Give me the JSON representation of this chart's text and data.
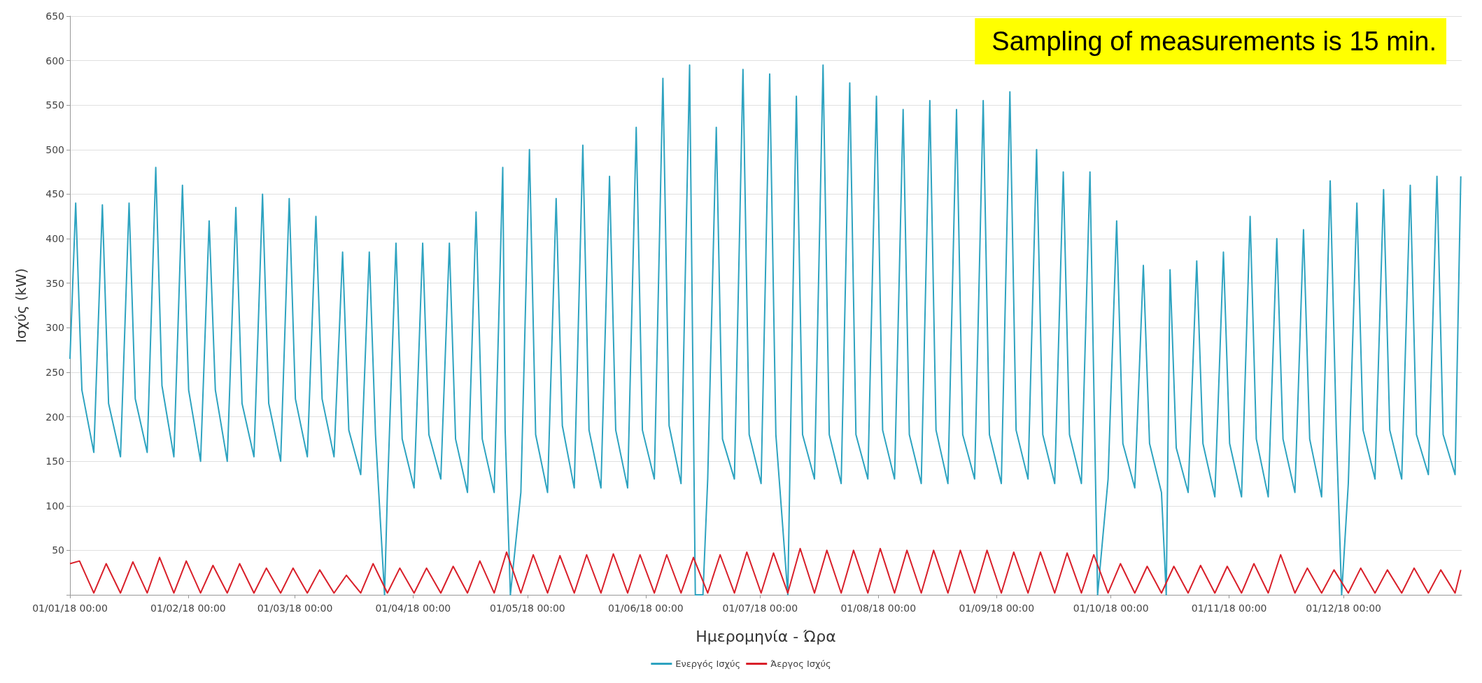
{
  "chart_data": {
    "type": "line",
    "xlabel": "Ημερομηνία - Ώρα",
    "ylabel": "Ισχύς (kW)",
    "annotations": [
      "Sampling of measurements is 15 min."
    ],
    "legend": "bottom",
    "grid": "y",
    "marker": "none",
    "line_style": "solid",
    "xlim": [
      "2018-01-01T00:00",
      "2018-12-31T23:45"
    ],
    "xticks": [
      {
        "value": "2018-01-01",
        "label": "01/01/18 00:00"
      },
      {
        "value": "2018-02-01",
        "label": "01/02/18 00:00"
      },
      {
        "value": "2018-03-01",
        "label": "01/03/18 00:00"
      },
      {
        "value": "2018-04-01",
        "label": "01/04/18 00:00"
      },
      {
        "value": "2018-05-01",
        "label": "01/05/18 00:00"
      },
      {
        "value": "2018-06-01",
        "label": "01/06/18 00:00"
      },
      {
        "value": "2018-07-01",
        "label": "01/07/18 00:00"
      },
      {
        "value": "2018-08-01",
        "label": "01/08/18 00:00"
      },
      {
        "value": "2018-09-01",
        "label": "01/09/18 00:00"
      },
      {
        "value": "2018-10-01",
        "label": "01/10/18 00:00"
      },
      {
        "value": "2018-11-01",
        "label": "01/11/18 00:00"
      },
      {
        "value": "2018-12-01",
        "label": "01/12/18 00:00"
      }
    ],
    "ylim": [
      0,
      650
    ],
    "yticks": [
      {
        "value": 0,
        "label": null
      },
      50,
      100,
      150,
      200,
      250,
      300,
      350,
      400,
      450,
      500,
      550,
      600,
      650
    ],
    "series": [
      {
        "name": "Ενεργός Ισχύς",
        "color": "#2ea3c0",
        "x": [
          "2018-01-01T00:00",
          "2018-01-02T12:00",
          "2018-01-04T03:00",
          "2018-01-07T06:00",
          "2018-01-09T12:00",
          "2018-01-11T03:00",
          "2018-01-14T06:00",
          "2018-01-16T12:00",
          "2018-01-18T03:00",
          "2018-01-21T06:00",
          "2018-01-23T12:00",
          "2018-01-25T03:00",
          "2018-01-28T06:00",
          "2018-01-30T12:00",
          "2018-02-01T03:00",
          "2018-02-04T06:00",
          "2018-02-06T12:00",
          "2018-02-08T03:00",
          "2018-02-11T06:00",
          "2018-02-13T12:00",
          "2018-02-15T03:00",
          "2018-02-18T06:00",
          "2018-02-20T12:00",
          "2018-02-22T03:00",
          "2018-02-25T06:00",
          "2018-02-27T12:00",
          "2018-03-01T03:00",
          "2018-03-04T06:00",
          "2018-03-06T12:00",
          "2018-03-08T03:00",
          "2018-03-11T06:00",
          "2018-03-13T12:00",
          "2018-03-15T03:00",
          "2018-03-18T06:00",
          "2018-03-20T12:00",
          "2018-03-22T03:00",
          "2018-03-24T12:00",
          "2018-03-25T06:00",
          "2018-03-27T12:00",
          "2018-03-29T03:00",
          "2018-04-01T06:00",
          "2018-04-03T12:00",
          "2018-04-05T03:00",
          "2018-04-08T06:00",
          "2018-04-10T12:00",
          "2018-04-12T03:00",
          "2018-04-15T06:00",
          "2018-04-17T12:00",
          "2018-04-19T03:00",
          "2018-04-22T06:00",
          "2018-04-24T12:00",
          "2018-04-25T03:00",
          "2018-04-26T12:00",
          "2018-04-29T06:00",
          "2018-05-01T12:00",
          "2018-05-03T03:00",
          "2018-05-06T06:00",
          "2018-05-08T12:00",
          "2018-05-10T03:00",
          "2018-05-13T06:00",
          "2018-05-15T12:00",
          "2018-05-17T03:00",
          "2018-05-20T06:00",
          "2018-05-22T12:00",
          "2018-05-24T03:00",
          "2018-05-27T06:00",
          "2018-05-29T12:00",
          "2018-05-31T03:00",
          "2018-06-03T06:00",
          "2018-06-05T12:00",
          "2018-06-07T03:00",
          "2018-06-10T06:00",
          "2018-06-12T12:00",
          "2018-06-14T00:00",
          "2018-06-16T00:00",
          "2018-06-17T06:00",
          "2018-06-19T12:00",
          "2018-06-21T03:00",
          "2018-06-24T06:00",
          "2018-06-26T12:00",
          "2018-06-28T03:00",
          "2018-07-01T06:00",
          "2018-07-03T12:00",
          "2018-07-05T03:00",
          "2018-07-08T06:00",
          "2018-07-10T12:00",
          "2018-07-12T03:00",
          "2018-07-15T06:00",
          "2018-07-17T12:00",
          "2018-07-19T03:00",
          "2018-07-22T06:00",
          "2018-07-24T12:00",
          "2018-07-26T03:00",
          "2018-07-29T06:00",
          "2018-07-31T12:00",
          "2018-08-02T03:00",
          "2018-08-05T06:00",
          "2018-08-07T12:00",
          "2018-08-09T03:00",
          "2018-08-12T06:00",
          "2018-08-14T12:00",
          "2018-08-16T03:00",
          "2018-08-19T06:00",
          "2018-08-21T12:00",
          "2018-08-23T03:00",
          "2018-08-26T06:00",
          "2018-08-28T12:00",
          "2018-08-30T03:00",
          "2018-09-02T06:00",
          "2018-09-04T12:00",
          "2018-09-06T03:00",
          "2018-09-09T06:00",
          "2018-09-11T12:00",
          "2018-09-13T03:00",
          "2018-09-16T06:00",
          "2018-09-18T12:00",
          "2018-09-20T03:00",
          "2018-09-23T06:00",
          "2018-09-25T12:00",
          "2018-09-27T12:00",
          "2018-09-30T06:00",
          "2018-10-02T12:00",
          "2018-10-04T03:00",
          "2018-10-07T06:00",
          "2018-10-09T12:00",
          "2018-10-11T03:00",
          "2018-10-14T06:00",
          "2018-10-15T12:00",
          "2018-10-16T12:00",
          "2018-10-18T03:00",
          "2018-10-21T06:00",
          "2018-10-23T12:00",
          "2018-10-25T03:00",
          "2018-10-28T06:00",
          "2018-10-30T12:00",
          "2018-11-01T03:00",
          "2018-11-04T06:00",
          "2018-11-06T12:00",
          "2018-11-08T03:00",
          "2018-11-11T06:00",
          "2018-11-13T12:00",
          "2018-11-15T03:00",
          "2018-11-18T06:00",
          "2018-11-20T12:00",
          "2018-11-22T03:00",
          "2018-11-25T06:00",
          "2018-11-27T12:00",
          "2018-11-29T03:00",
          "2018-11-30T12:00",
          "2018-12-02T06:00",
          "2018-12-04T12:00",
          "2018-12-06T03:00",
          "2018-12-09T06:00",
          "2018-12-11T12:00",
          "2018-12-13T03:00",
          "2018-12-16T06:00",
          "2018-12-18T12:00",
          "2018-12-20T03:00",
          "2018-12-23T06:00",
          "2018-12-25T12:00",
          "2018-12-27T03:00",
          "2018-12-30T06:00",
          "2018-12-31T18:00"
        ],
        "values": [
          265,
          440,
          230,
          160,
          438,
          215,
          155,
          440,
          220,
          160,
          480,
          235,
          155,
          460,
          230,
          150,
          420,
          230,
          150,
          435,
          215,
          155,
          450,
          215,
          150,
          445,
          220,
          155,
          425,
          220,
          155,
          385,
          185,
          135,
          385,
          180,
          0,
          115,
          395,
          175,
          120,
          395,
          180,
          130,
          395,
          175,
          115,
          430,
          175,
          115,
          480,
          185,
          0,
          115,
          500,
          180,
          115,
          445,
          190,
          120,
          505,
          185,
          120,
          470,
          185,
          120,
          525,
          185,
          130,
          580,
          190,
          125,
          595,
          0,
          0,
          130,
          525,
          175,
          130,
          590,
          180,
          125,
          585,
          180,
          0,
          560,
          180,
          130,
          595,
          180,
          125,
          575,
          180,
          130,
          560,
          185,
          130,
          545,
          180,
          125,
          555,
          185,
          125,
          545,
          180,
          130,
          555,
          180,
          125,
          565,
          185,
          130,
          500,
          180,
          125,
          475,
          180,
          125,
          475,
          0,
          130,
          420,
          170,
          120,
          370,
          170,
          115,
          0,
          365,
          165,
          115,
          375,
          170,
          110,
          385,
          170,
          110,
          425,
          175,
          110,
          400,
          175,
          115,
          410,
          175,
          110,
          465,
          180,
          0,
          125,
          440,
          185,
          130,
          455,
          185,
          130,
          460,
          180,
          135,
          470,
          180,
          135,
          470
        ]
      },
      {
        "name": "Άεργος Ισχύς",
        "color": "#d9202a",
        "x": [
          "2018-01-01T00:00",
          "2018-01-03T12:00",
          "2018-01-07T06:00",
          "2018-01-10T12:00",
          "2018-01-14T06:00",
          "2018-01-17T12:00",
          "2018-01-21T06:00",
          "2018-01-24T12:00",
          "2018-01-28T06:00",
          "2018-01-31T12:00",
          "2018-02-04T06:00",
          "2018-02-07T12:00",
          "2018-02-11T06:00",
          "2018-02-14T12:00",
          "2018-02-18T06:00",
          "2018-02-21T12:00",
          "2018-02-25T06:00",
          "2018-02-28T12:00",
          "2018-03-04T06:00",
          "2018-03-07T12:00",
          "2018-03-11T06:00",
          "2018-03-14T12:00",
          "2018-03-18T06:00",
          "2018-03-21T12:00",
          "2018-03-25T06:00",
          "2018-03-28T12:00",
          "2018-04-01T06:00",
          "2018-04-04T12:00",
          "2018-04-08T06:00",
          "2018-04-11T12:00",
          "2018-04-15T06:00",
          "2018-04-18T12:00",
          "2018-04-22T06:00",
          "2018-04-25T12:00",
          "2018-04-29T06:00",
          "2018-05-02T12:00",
          "2018-05-06T06:00",
          "2018-05-09T12:00",
          "2018-05-13T06:00",
          "2018-05-16T12:00",
          "2018-05-20T06:00",
          "2018-05-23T12:00",
          "2018-05-27T06:00",
          "2018-05-30T12:00",
          "2018-06-03T06:00",
          "2018-06-06T12:00",
          "2018-06-10T06:00",
          "2018-06-13T12:00",
          "2018-06-17T06:00",
          "2018-06-20T12:00",
          "2018-06-24T06:00",
          "2018-06-27T12:00",
          "2018-07-01T06:00",
          "2018-07-04T12:00",
          "2018-07-08T06:00",
          "2018-07-11T12:00",
          "2018-07-15T06:00",
          "2018-07-18T12:00",
          "2018-07-22T06:00",
          "2018-07-25T12:00",
          "2018-07-29T06:00",
          "2018-08-01T12:00",
          "2018-08-05T06:00",
          "2018-08-08T12:00",
          "2018-08-12T06:00",
          "2018-08-15T12:00",
          "2018-08-19T06:00",
          "2018-08-22T12:00",
          "2018-08-26T06:00",
          "2018-08-29T12:00",
          "2018-09-02T06:00",
          "2018-09-05T12:00",
          "2018-09-09T06:00",
          "2018-09-12T12:00",
          "2018-09-16T06:00",
          "2018-09-19T12:00",
          "2018-09-23T06:00",
          "2018-09-26T12:00",
          "2018-09-30T06:00",
          "2018-10-03T12:00",
          "2018-10-07T06:00",
          "2018-10-10T12:00",
          "2018-10-14T06:00",
          "2018-10-17T12:00",
          "2018-10-21T06:00",
          "2018-10-24T12:00",
          "2018-10-28T06:00",
          "2018-10-31T12:00",
          "2018-11-04T06:00",
          "2018-11-07T12:00",
          "2018-11-11T06:00",
          "2018-11-14T12:00",
          "2018-11-18T06:00",
          "2018-11-21T12:00",
          "2018-11-25T06:00",
          "2018-11-28T12:00",
          "2018-12-02T06:00",
          "2018-12-05T12:00",
          "2018-12-09T06:00",
          "2018-12-12T12:00",
          "2018-12-16T06:00",
          "2018-12-19T12:00",
          "2018-12-23T06:00",
          "2018-12-26T12:00",
          "2018-12-30T06:00",
          "2018-12-31T18:00"
        ],
        "values": [
          35,
          38,
          2,
          35,
          2,
          37,
          2,
          42,
          2,
          38,
          2,
          33,
          2,
          35,
          2,
          30,
          2,
          30,
          2,
          28,
          2,
          22,
          2,
          35,
          2,
          30,
          2,
          30,
          2,
          32,
          2,
          38,
          2,
          48,
          2,
          45,
          2,
          44,
          2,
          45,
          2,
          46,
          2,
          45,
          2,
          45,
          2,
          42,
          2,
          45,
          2,
          48,
          2,
          47,
          2,
          52,
          2,
          50,
          2,
          50,
          2,
          52,
          2,
          50,
          2,
          50,
          2,
          50,
          2,
          50,
          2,
          48,
          2,
          48,
          2,
          47,
          2,
          45,
          2,
          35,
          2,
          32,
          2,
          32,
          2,
          33,
          2,
          32,
          2,
          35,
          2,
          45,
          2,
          30,
          2,
          28,
          2,
          30,
          2,
          28,
          2,
          30,
          2,
          28,
          2,
          28
        ]
      }
    ]
  }
}
